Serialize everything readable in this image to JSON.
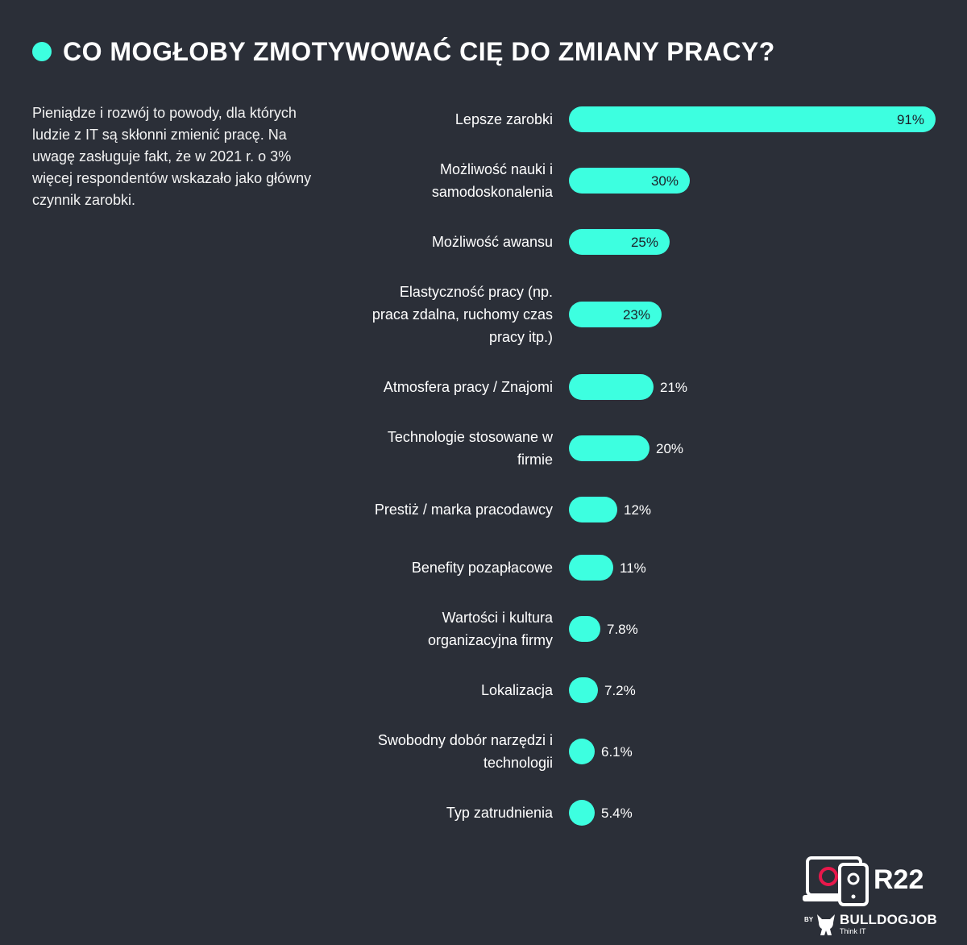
{
  "colors": {
    "background": "#2b2f38",
    "accent": "#3dffe0",
    "text": "#ffffff",
    "logo_ring": "#e8184b"
  },
  "header": {
    "title": "CO MOGŁOBY ZMOTYWOWAĆ CIĘ DO ZMIANY PRACY?"
  },
  "description": "Pieniądze i rozwój to powody, dla których ludzie z IT są skłonni zmienić pracę. Na uwagę zasługuje fakt, że w 2021 r. o 3% więcej respondentów wskazało jako główny czynnik zarobki.",
  "chart_data": {
    "type": "bar",
    "orientation": "horizontal",
    "unit": "%",
    "xlim": [
      0,
      91
    ],
    "grid": false,
    "legend": "none",
    "categories": [
      [
        "Lepsze zarobki"
      ],
      [
        "Możliwość nauki i",
        "samodoskonalenia"
      ],
      [
        "Możliwość awansu"
      ],
      [
        "Elastyczność pracy (np.",
        "praca zdalna, ruchomy czas",
        "pracy itp.)"
      ],
      [
        "Atmosfera pracy / Znajomi"
      ],
      [
        "Technologie stosowane w",
        "firmie"
      ],
      [
        "Prestiż / marka pracodawcy"
      ],
      [
        "Benefity pozapłacowe"
      ],
      [
        "Wartości i kultura",
        "organizacyjna firmy"
      ],
      [
        "Lokalizacja"
      ],
      [
        "Swobodny dobór narzędzi i",
        "technologii"
      ],
      [
        "Typ zatrudnienia"
      ]
    ],
    "values": [
      91,
      30,
      25,
      23,
      21,
      20,
      12,
      11,
      7.8,
      7.2,
      6.1,
      5.4
    ],
    "value_labels": [
      "91%",
      "30%",
      "25%",
      "23%",
      "21%",
      "20%",
      "12%",
      "11%",
      "7.8%",
      "7.2%",
      "6.1%",
      "5.4%"
    ]
  },
  "logo": {
    "report": "R22",
    "by": "BY",
    "brand": "BULLDOGJOB",
    "tagline": "Think IT",
    "icon": "laptop-phone-icon"
  }
}
